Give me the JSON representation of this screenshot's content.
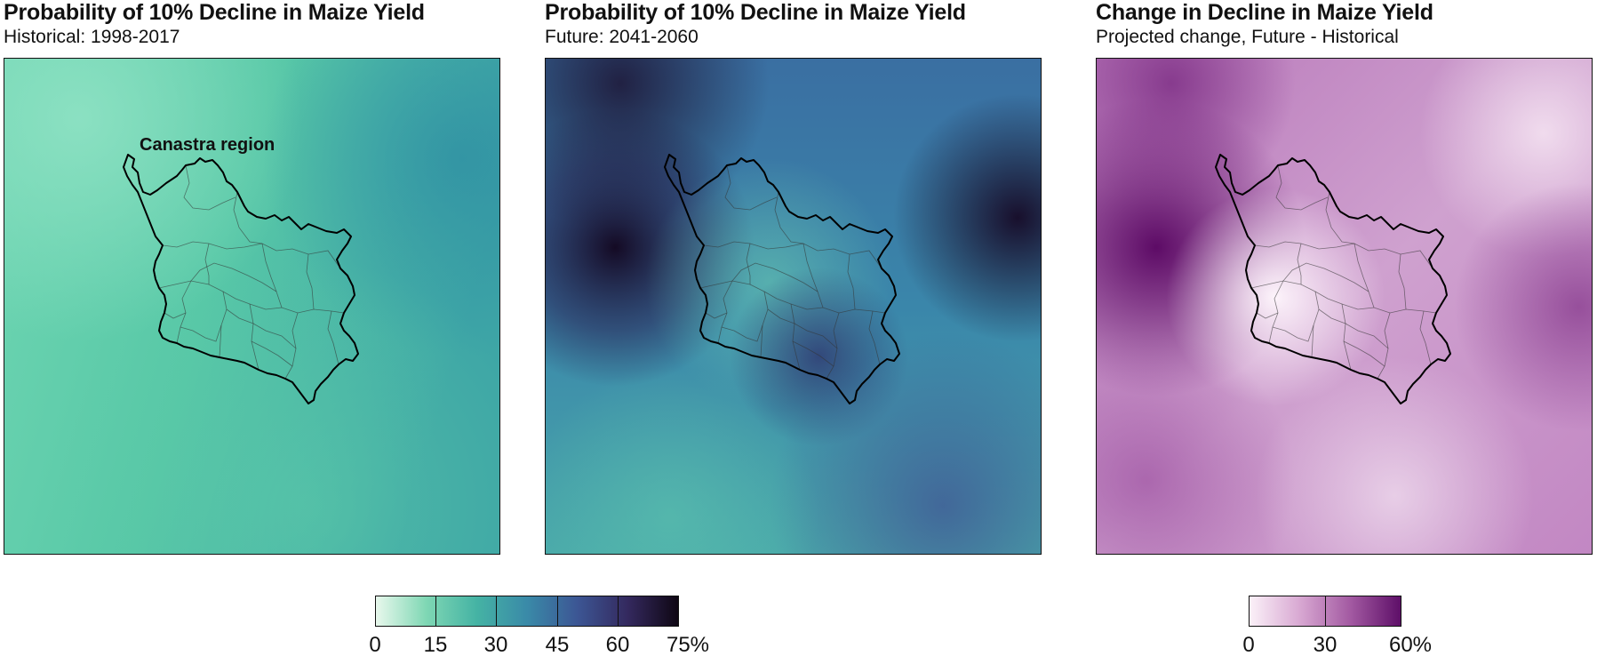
{
  "panels": [
    {
      "title": "Probability of 10% Decline in Maize Yield",
      "subtitle": "Historical: 1998-2017",
      "region_label": "Canastra region"
    },
    {
      "title": "Probability of 10% Decline in Maize Yield",
      "subtitle": "Future: 2041-2060"
    },
    {
      "title": "Change in Decline in Maize Yield",
      "subtitle": "Projected change, Future - Historical"
    }
  ],
  "legends": [
    {
      "ticks": [
        "0",
        "15",
        "30",
        "45",
        "60",
        "75%"
      ],
      "values": [
        0,
        15,
        30,
        45,
        60,
        75
      ],
      "colors": [
        "#e8f8ec",
        "#7fd7b4",
        "#45b3a4",
        "#3a8aa8",
        "#3c5694",
        "#34295e",
        "#0f0714"
      ]
    },
    {
      "ticks": [
        "0",
        "30",
        "60%"
      ],
      "values": [
        0,
        30,
        60
      ],
      "colors": [
        "#fbf1f8",
        "#d8a8d2",
        "#a35aa2",
        "#5e0f68"
      ]
    }
  ],
  "map_colors": {
    "historical": {
      "base": "#56c9a6",
      "light": "#8ee0c1",
      "dark": "#3c9fa6"
    },
    "future": {
      "base": "#3a7ea8",
      "light": "#6ad0b0",
      "dark": "#1a0f2e",
      "mid": "#34467e"
    },
    "change": {
      "base": "#c58fc6",
      "light": "#fbf0f8",
      "dark": "#5a0a62"
    },
    "outline": "#000000"
  }
}
